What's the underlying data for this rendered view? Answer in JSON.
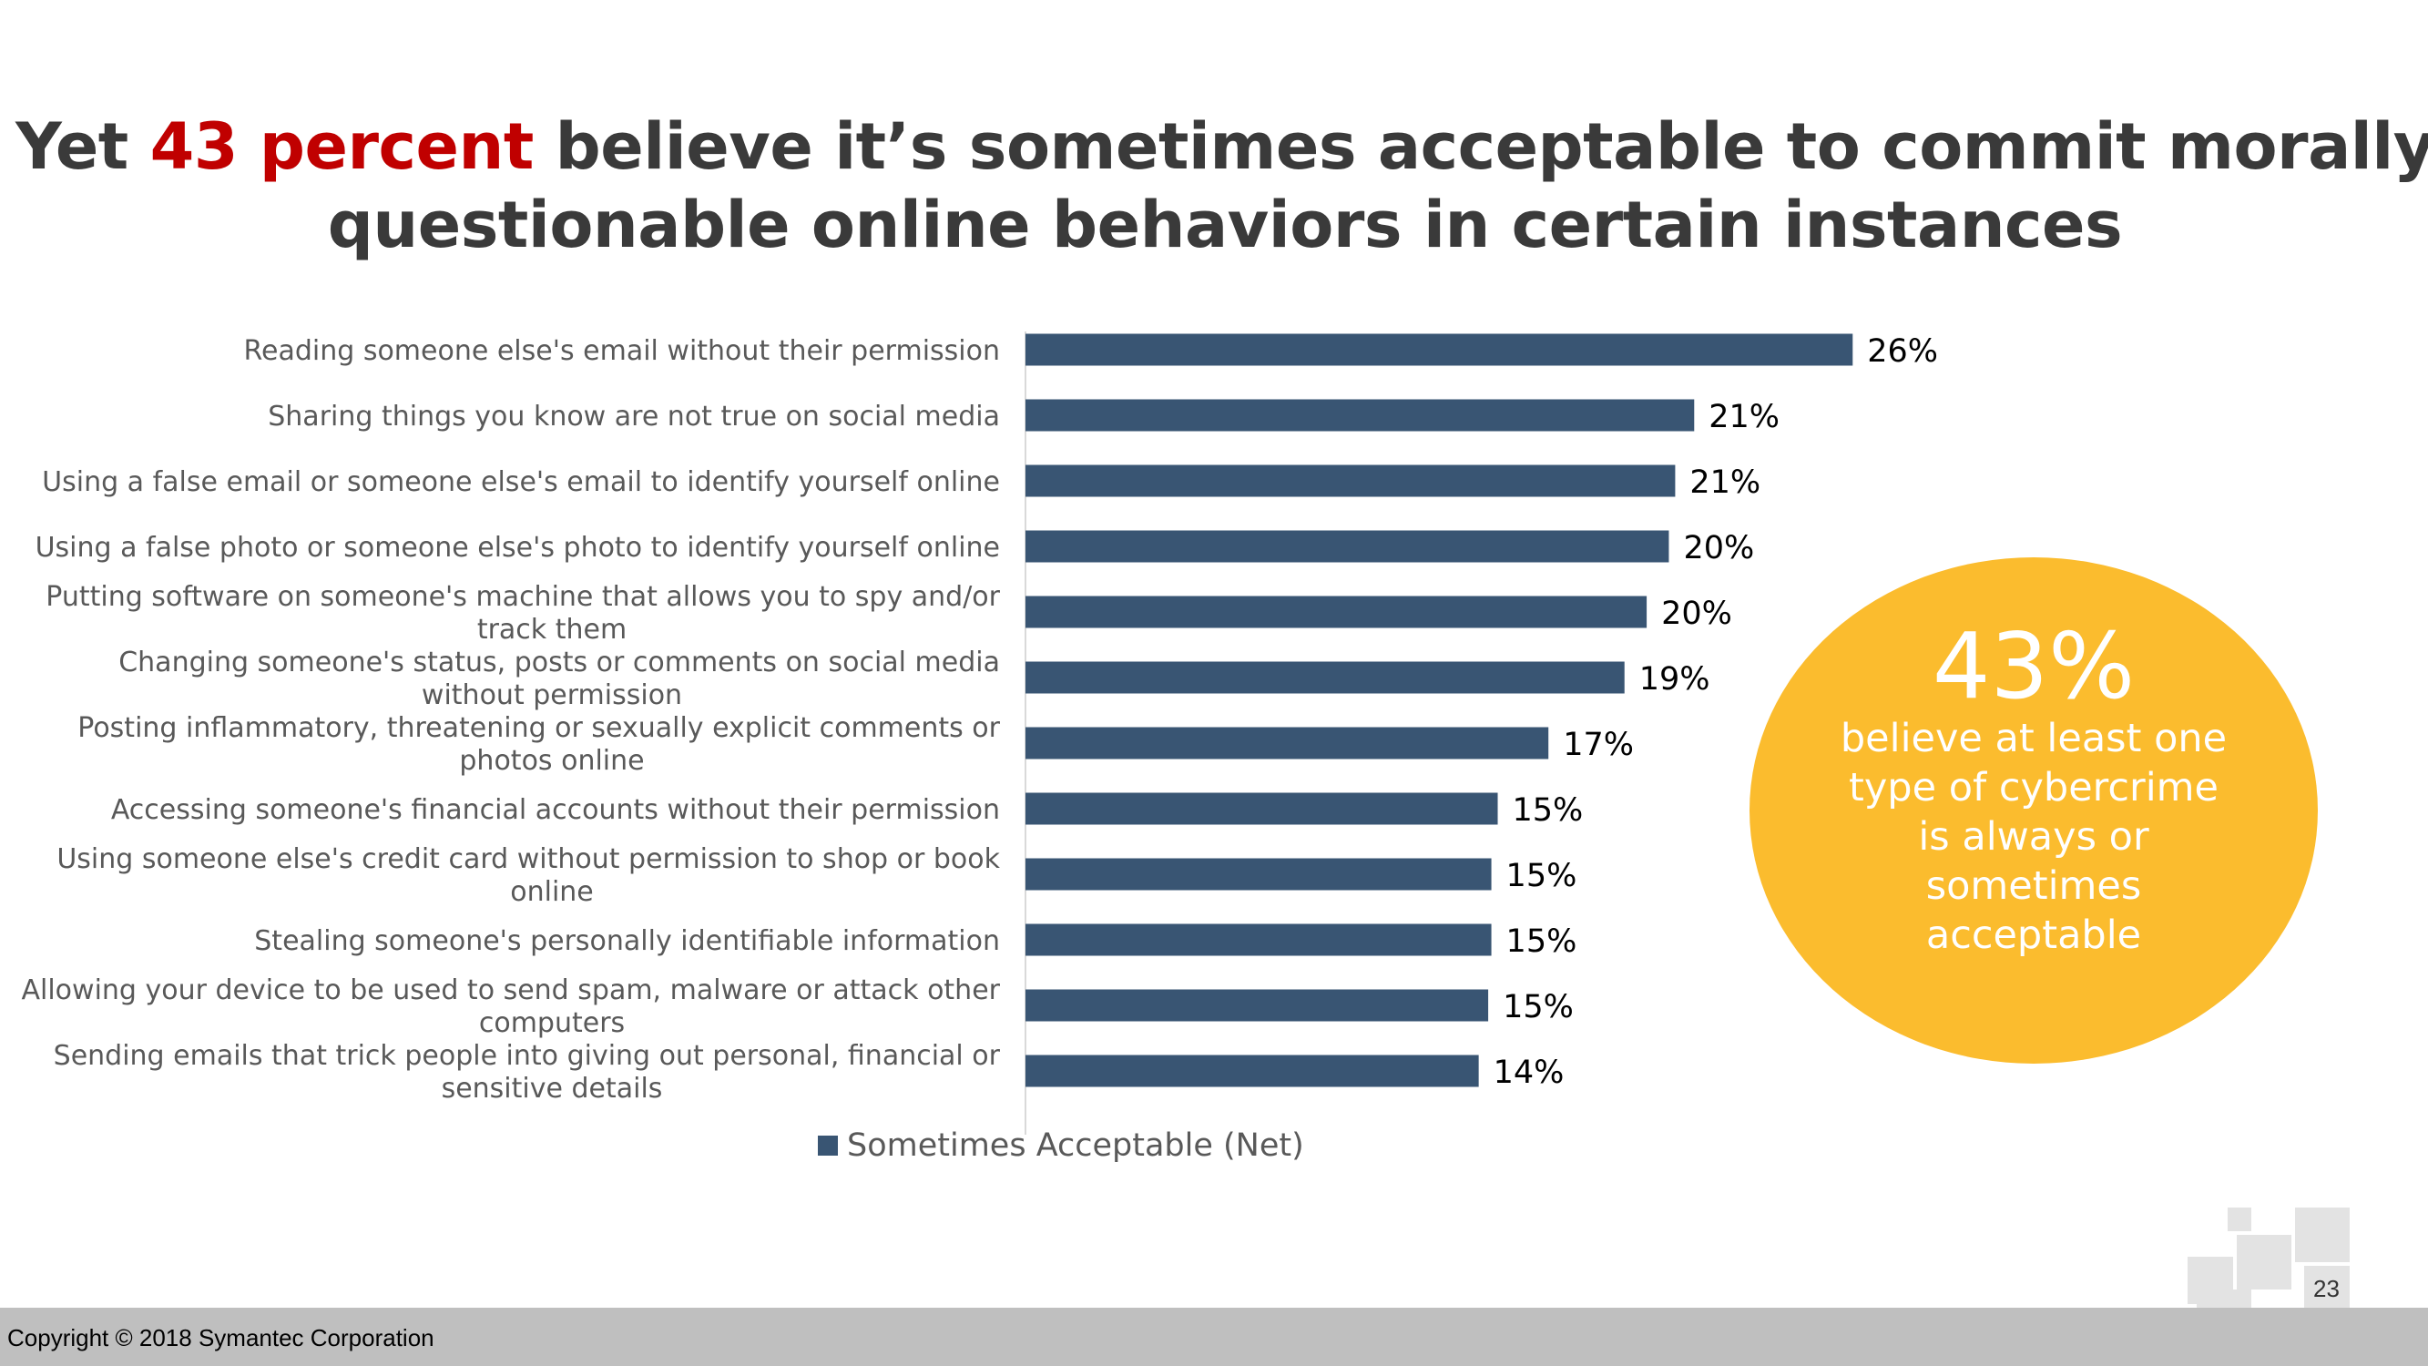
{
  "slide": {
    "title_pre": "Yet ",
    "title_highlight": "43 percent",
    "title_post": " believe it’s sometimes acceptable to commit morally questionable online behaviors in certain instances",
    "callout_big": "43%",
    "callout_text": "believe at least one type of cybercrime is always or sometimes acceptable",
    "copyright": "Copyright © 2018 Symantec Corporation",
    "page_number": "23"
  },
  "chart_data": {
    "type": "bar",
    "orientation": "horizontal",
    "categories": [
      [
        "Reading someone else's email without their permission"
      ],
      [
        "Sharing things you know are not true on social media"
      ],
      [
        "Using a false email or someone else's email to identify yourself online"
      ],
      [
        "Using a false photo or someone else's photo to identify yourself online"
      ],
      [
        "Putting software on someone's machine that allows you to spy and/or",
        "track them"
      ],
      [
        "Changing someone's status, posts or comments on social media",
        "without permission"
      ],
      [
        "Posting inflammatory, threatening or sexually explicit comments or",
        "photos online"
      ],
      [
        "Accessing someone's financial accounts without their permission"
      ],
      [
        "Using someone else's credit card without permission to shop or book",
        "online"
      ],
      [
        "Stealing someone's personally identifiable information"
      ],
      [
        "Allowing your device to be used to send spam, malware or attack other",
        "computers"
      ],
      [
        "Sending emails that trick people into giving out personal, financial or",
        "sensitive details"
      ]
    ],
    "series": [
      {
        "name": "Sometimes Acceptable (Net)",
        "values": [
          26,
          21,
          21,
          20,
          20,
          19,
          17,
          15,
          15,
          15,
          15,
          14
        ],
        "labels": [
          "26%",
          "21%",
          "21%",
          "20%",
          "20%",
          "19%",
          "17%",
          "15%",
          "15%",
          "15%",
          "15%",
          "14%"
        ],
        "precise": [
          26.1,
          21.1,
          20.5,
          20.3,
          19.6,
          18.9,
          16.5,
          14.9,
          14.7,
          14.7,
          14.6,
          14.3
        ]
      }
    ],
    "xlim": [
      0,
      30
    ],
    "legend": "bottom",
    "grid": false,
    "color": "#395573"
  }
}
